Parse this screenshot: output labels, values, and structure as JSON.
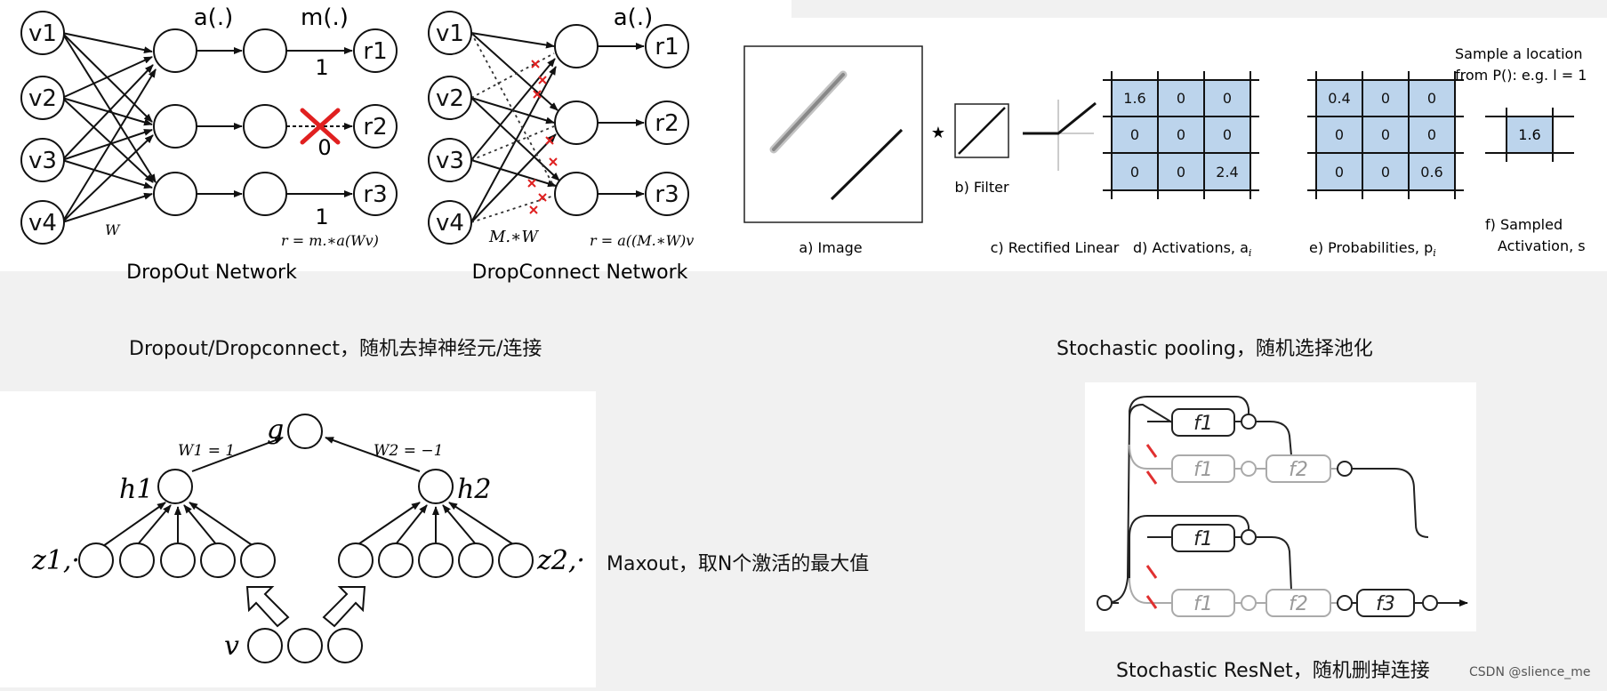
{
  "dropout": {
    "inputs": [
      "v1",
      "v2",
      "v3",
      "v4"
    ],
    "outputs": [
      "r1",
      "r2",
      "r3"
    ],
    "label_act": "a(.)",
    "label_mask": "m(.)",
    "mask_values": [
      "1",
      "0",
      "1"
    ],
    "weight_label": "W",
    "formula": "r = m.∗a(Wv)",
    "title": "DropOut Network"
  },
  "dropconnect": {
    "inputs": [
      "v1",
      "v2",
      "v3",
      "v4"
    ],
    "outputs": [
      "r1",
      "r2",
      "r3"
    ],
    "label_act": "a(.)",
    "weight_label": "M.∗W",
    "formula": "r = a((M.∗W)v",
    "title": "DropConnect Network"
  },
  "stochastic_pool": {
    "label_image": "a) Image",
    "star": "★",
    "label_filter": "b) Filter",
    "label_relu": "c) Rectified Linear",
    "label_activations": "d) Activations, a",
    "label_activations_sub": "i",
    "activations": [
      "1.6",
      "0",
      "0",
      "0",
      "0",
      "0",
      "0",
      "0",
      "2.4"
    ],
    "label_probabilities": "e) Probabilities, p",
    "label_probabilities_sub": "i",
    "probabilities": [
      "0.4",
      "0",
      "0",
      "0",
      "0",
      "0",
      "0",
      "0",
      "0.6"
    ],
    "sample_line1": "Sample a location",
    "sample_line2": "from P(): e.g. l = 1",
    "sampled_value": "1.6",
    "label_sampled_1": "f) Sampled",
    "label_sampled_2": "Activation, s"
  },
  "captions": {
    "dropout": "Dropout/Dropconnect，随机去掉神经元/连接",
    "pooling": "Stochastic pooling，随机选择池化",
    "maxout": "Maxout，取N个激活的最大值",
    "resnet": "Stochastic ResNet，随机删掉连接"
  },
  "maxout": {
    "g": "g",
    "h1": "h1",
    "h2": "h2",
    "w1": "W1 = 1",
    "w2": "W2 = −1",
    "z1": "z1,·",
    "z2": "z2,·",
    "v": "v"
  },
  "resnet": {
    "blocks": [
      "f1",
      "f1",
      "f2",
      "f1",
      "f1",
      "f2",
      "f3"
    ]
  },
  "watermark": "CSDN @slience_me"
}
